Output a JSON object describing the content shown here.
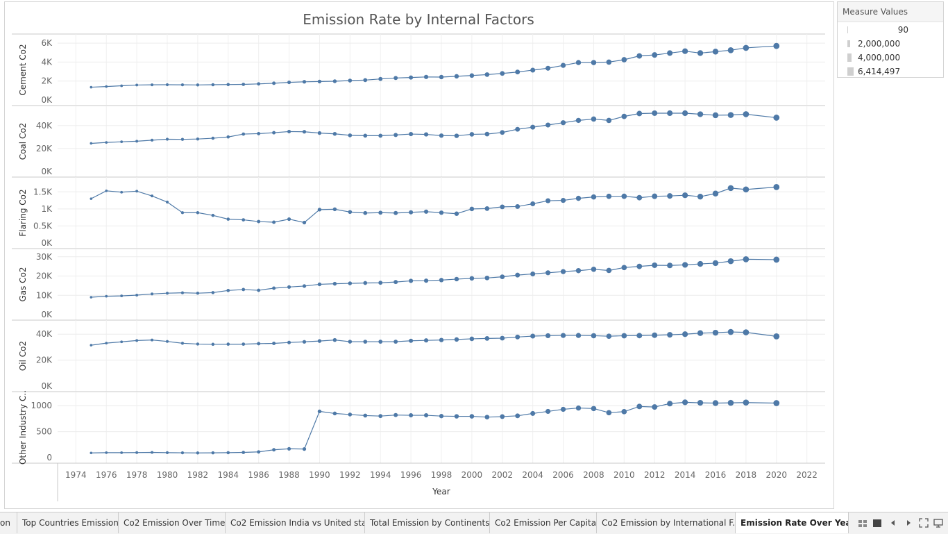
{
  "legend": {
    "title": "Measure Values",
    "items": [
      "90",
      "2,000,000",
      "4,000,000",
      "6,414,497"
    ]
  },
  "tabs": [
    {
      "label": "on"
    },
    {
      "label": "Top Countries Emission"
    },
    {
      "label": "Co2 Emission Over Time"
    },
    {
      "label": "Co2 Emission India vs United sta..."
    },
    {
      "label": "Total Emission by Continents"
    },
    {
      "label": "Co2 Emission Per Capita"
    },
    {
      "label": "Co2 Emission by International F..."
    },
    {
      "label": "Emission Rate Over Years"
    }
  ],
  "controls": [
    "grid-view-icon",
    "filmstrip-view-icon",
    "previous-sheet-icon",
    "next-sheet-icon",
    "fullscreen-icon",
    "present-icon"
  ],
  "chart_data": {
    "type": "line",
    "title": "Emission Rate by Internal Factors",
    "xlabel": "Year",
    "x_ticks": [
      "1974",
      "1976",
      "1978",
      "1980",
      "1982",
      "1984",
      "1986",
      "1988",
      "1990",
      "1992",
      "1994",
      "1996",
      "1998",
      "2000",
      "2002",
      "2004",
      "2006",
      "2008",
      "2010",
      "2012",
      "2014",
      "2016",
      "2018",
      "2020",
      "2022"
    ],
    "x_range": [
      1972.8,
      2023.2
    ],
    "color": "#4e79a7",
    "grid": true,
    "legend_position": "top-right",
    "x": [
      1975,
      1976,
      1977,
      1978,
      1979,
      1980,
      1981,
      1982,
      1983,
      1984,
      1985,
      1986,
      1987,
      1988,
      1989,
      1990,
      1991,
      1992,
      1993,
      1994,
      1995,
      1996,
      1997,
      1998,
      1999,
      2000,
      2001,
      2002,
      2003,
      2004,
      2005,
      2006,
      2007,
      2008,
      2009,
      2010,
      2011,
      2012,
      2013,
      2014,
      2015,
      2016,
      2017,
      2018,
      2020
    ],
    "panels": [
      {
        "ylabel": "Cement Co2",
        "ylim": [
          0,
          6300
        ],
        "ticks": [
          0,
          2000,
          4000,
          6000
        ],
        "tick_labels": [
          "0K",
          "2K",
          "4K",
          "6K"
        ],
        "values": [
          1350,
          1420,
          1500,
          1580,
          1600,
          1610,
          1600,
          1590,
          1610,
          1630,
          1650,
          1700,
          1770,
          1860,
          1920,
          1950,
          1980,
          2050,
          2100,
          2220,
          2320,
          2370,
          2430,
          2420,
          2500,
          2580,
          2680,
          2800,
          2950,
          3150,
          3350,
          3650,
          3950,
          3950,
          4000,
          4250,
          4650,
          4750,
          4950,
          5150,
          4950,
          5100,
          5250,
          5500,
          5700
        ]
      },
      {
        "ylabel": "Coal Co2",
        "ylim": [
          0,
          52000
        ],
        "ticks": [
          0,
          20000,
          40000
        ],
        "tick_labels": [
          "0K",
          "20K",
          "40K"
        ],
        "values": [
          24500,
          25300,
          25900,
          26400,
          27300,
          28100,
          28000,
          28300,
          29000,
          30100,
          32600,
          33000,
          33800,
          34800,
          34600,
          33500,
          32800,
          31500,
          31200,
          31200,
          31800,
          32600,
          32300,
          31300,
          31100,
          32400,
          32600,
          34000,
          36800,
          38600,
          40500,
          42500,
          44500,
          45700,
          44500,
          48000,
          50500,
          50800,
          50800,
          50800,
          49900,
          49000,
          49200,
          49900,
          46900
        ]
      },
      {
        "ylabel": "Flaring Co2",
        "ylim": [
          0,
          1750
        ],
        "ticks": [
          0,
          500,
          1000,
          1500
        ],
        "tick_labels": [
          "0K",
          "0.5K",
          "1K",
          "1.5K"
        ],
        "values": [
          1300,
          1530,
          1490,
          1520,
          1380,
          1200,
          890,
          890,
          810,
          700,
          680,
          630,
          610,
          700,
          600,
          980,
          990,
          910,
          880,
          890,
          880,
          900,
          920,
          890,
          860,
          1000,
          1010,
          1060,
          1070,
          1150,
          1240,
          1250,
          1310,
          1350,
          1370,
          1370,
          1330,
          1370,
          1380,
          1400,
          1360,
          1450,
          1610,
          1570,
          1640
        ]
      },
      {
        "ylabel": "Gas Co2",
        "ylim": [
          0,
          31000
        ],
        "ticks": [
          0,
          10000,
          20000,
          30000
        ],
        "tick_labels": [
          "0K",
          "10K",
          "20K",
          "30K"
        ],
        "values": [
          9000,
          9500,
          9700,
          10100,
          10700,
          11100,
          11300,
          11100,
          11400,
          12500,
          13000,
          12600,
          13700,
          14300,
          14800,
          15700,
          16000,
          16200,
          16400,
          16500,
          16900,
          17500,
          17600,
          17900,
          18400,
          18800,
          19000,
          19600,
          20500,
          21100,
          21700,
          22300,
          22800,
          23500,
          22900,
          24400,
          25000,
          25600,
          25500,
          25800,
          26300,
          26700,
          27700,
          28700,
          28500
        ]
      },
      {
        "ylabel": "Oil Co2",
        "ylim": [
          0,
          46000
        ],
        "ticks": [
          0,
          20000,
          40000
        ],
        "tick_labels": [
          "0K",
          "20K",
          "40K"
        ],
        "values": [
          31500,
          33100,
          34100,
          35100,
          35500,
          34400,
          33000,
          32400,
          32200,
          32300,
          32300,
          32700,
          32900,
          33600,
          34100,
          34700,
          35500,
          34200,
          34200,
          34200,
          34200,
          34900,
          35200,
          35500,
          35900,
          36400,
          36700,
          36900,
          37800,
          38500,
          38800,
          39000,
          39000,
          38800,
          38400,
          38800,
          38900,
          39200,
          39500,
          40000,
          40800,
          41100,
          41700,
          41400,
          38300
        ]
      },
      {
        "ylabel": "Other Industry C..",
        "ylim": [
          0,
          1150
        ],
        "ticks": [
          0,
          500,
          1000
        ],
        "tick_labels": [
          "0",
          "500",
          "1000"
        ],
        "values": [
          90,
          95,
          95,
          97,
          100,
          95,
          93,
          90,
          92,
          95,
          100,
          110,
          150,
          170,
          165,
          890,
          850,
          830,
          810,
          800,
          820,
          815,
          815,
          800,
          795,
          795,
          780,
          790,
          805,
          850,
          890,
          930,
          955,
          945,
          865,
          885,
          985,
          975,
          1040,
          1065,
          1055,
          1050,
          1055,
          1060,
          1050
        ]
      }
    ]
  }
}
